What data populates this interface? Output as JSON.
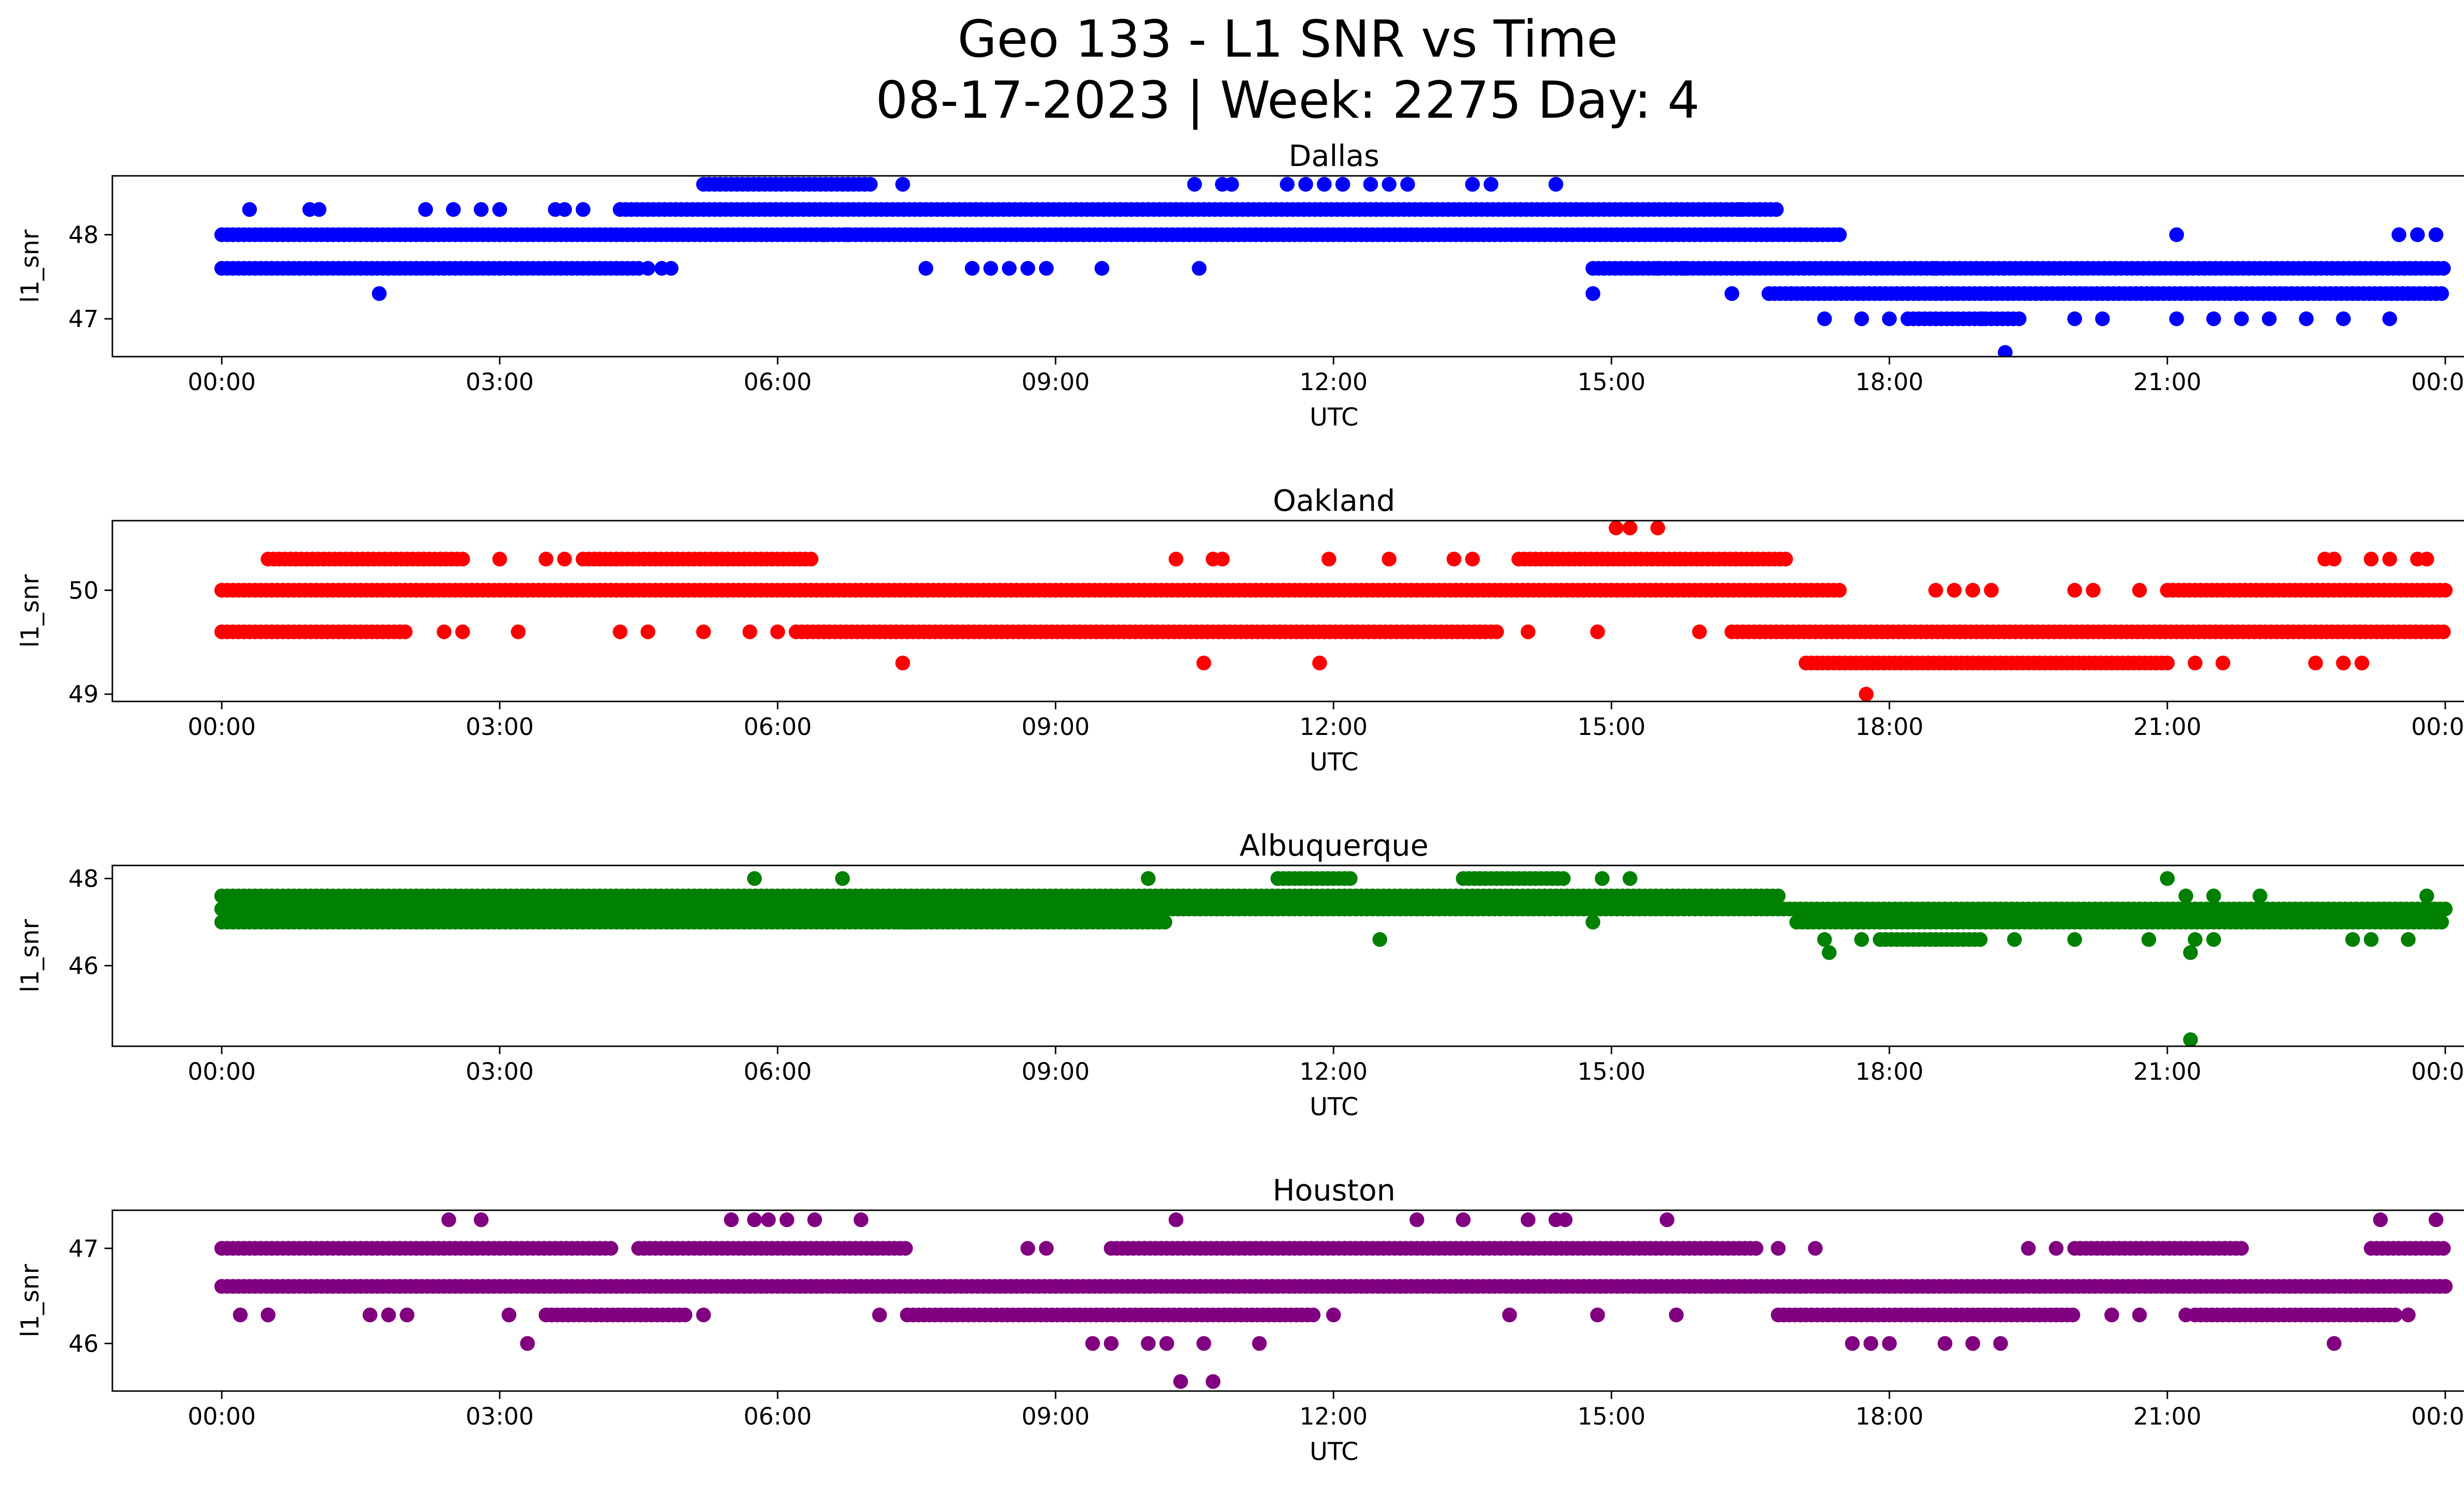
{
  "figure": {
    "title_line1": "Geo 133 - L1 SNR vs Time",
    "title_line2": "08-17-2023 | Week: 2275 Day: 4"
  },
  "chart_data": [
    {
      "type": "scatter",
      "title": "Dallas",
      "xlabel": "UTC",
      "ylabel": "l1_snr",
      "color": "#0000ff",
      "xlim": [
        0,
        24
      ],
      "ylim": [
        46.55,
        48.7
      ],
      "yticks": [
        47,
        48
      ],
      "xticks": [
        "00:00",
        "03:00",
        "06:00",
        "09:00",
        "12:00",
        "15:00",
        "18:00",
        "21:00",
        "00:00"
      ],
      "bands": [
        {
          "y": 48.0,
          "from": 0.0,
          "to": 17.5
        },
        {
          "y": 47.6,
          "from": 0.0,
          "to": 4.5
        },
        {
          "y": 48.3,
          "from": 4.3,
          "to": 16.8
        },
        {
          "y": 48.6,
          "from": 5.2,
          "to": 7.0
        },
        {
          "y": 47.6,
          "from": 14.8,
          "to": 24.0
        },
        {
          "y": 47.3,
          "from": 16.7,
          "to": 24.0
        },
        {
          "y": 47.0,
          "from": 18.2,
          "to": 19.4
        }
      ],
      "points": [
        [
          0.3,
          48.3
        ],
        [
          0.95,
          48.3
        ],
        [
          1.05,
          48.3
        ],
        [
          1.7,
          47.3
        ],
        [
          2.2,
          48.3
        ],
        [
          2.5,
          48.3
        ],
        [
          2.8,
          48.3
        ],
        [
          3.0,
          48.3
        ],
        [
          3.6,
          48.3
        ],
        [
          3.7,
          48.3
        ],
        [
          3.9,
          48.3
        ],
        [
          4.6,
          47.6
        ],
        [
          4.75,
          47.6
        ],
        [
          4.85,
          47.6
        ],
        [
          6.5,
          48.0
        ],
        [
          6.75,
          48.0
        ],
        [
          7.35,
          48.6
        ],
        [
          7.6,
          47.6
        ],
        [
          8.1,
          47.6
        ],
        [
          8.3,
          47.6
        ],
        [
          8.5,
          47.6
        ],
        [
          8.7,
          47.6
        ],
        [
          8.9,
          47.6
        ],
        [
          9.5,
          47.6
        ],
        [
          10.5,
          48.6
        ],
        [
          10.55,
          47.6
        ],
        [
          10.8,
          48.6
        ],
        [
          10.9,
          48.6
        ],
        [
          11.5,
          48.6
        ],
        [
          11.7,
          48.6
        ],
        [
          11.9,
          48.6
        ],
        [
          12.1,
          48.6
        ],
        [
          12.4,
          48.6
        ],
        [
          12.6,
          48.6
        ],
        [
          12.8,
          48.6
        ],
        [
          13.5,
          48.6
        ],
        [
          13.7,
          48.6
        ],
        [
          14.4,
          48.6
        ],
        [
          14.8,
          47.3
        ],
        [
          15.5,
          47.6
        ],
        [
          15.8,
          47.6
        ],
        [
          16.3,
          47.3
        ],
        [
          16.4,
          48.3
        ],
        [
          16.6,
          48.3
        ],
        [
          17.3,
          47.0
        ],
        [
          17.7,
          47.0
        ],
        [
          18.0,
          47.0
        ],
        [
          18.5,
          47.6
        ],
        [
          19.0,
          47.0
        ],
        [
          19.25,
          46.6
        ],
        [
          20.0,
          47.0
        ],
        [
          20.3,
          47.0
        ],
        [
          21.1,
          48.0
        ],
        [
          21.1,
          47.0
        ],
        [
          21.5,
          47.0
        ],
        [
          21.8,
          47.0
        ],
        [
          22.1,
          47.0
        ],
        [
          22.5,
          47.0
        ],
        [
          22.9,
          47.0
        ],
        [
          23.4,
          47.0
        ],
        [
          23.5,
          48.0
        ],
        [
          23.7,
          48.0
        ],
        [
          23.9,
          48.0
        ]
      ]
    },
    {
      "type": "scatter",
      "title": "Oakland",
      "xlabel": "UTC",
      "ylabel": "l1_snr",
      "color": "#ff0000",
      "xlim": [
        0,
        24
      ],
      "ylim": [
        48.93,
        50.67
      ],
      "yticks": [
        49,
        50
      ],
      "xticks": [
        "00:00",
        "03:00",
        "06:00",
        "09:00",
        "12:00",
        "15:00",
        "18:00",
        "21:00",
        "00:00"
      ],
      "bands": [
        {
          "y": 50.0,
          "from": 0.0,
          "to": 17.5
        },
        {
          "y": 49.6,
          "from": 0.0,
          "to": 2.0
        },
        {
          "y": 50.3,
          "from": 0.5,
          "to": 2.6
        },
        {
          "y": 50.3,
          "from": 3.9,
          "to": 6.4
        },
        {
          "y": 49.6,
          "from": 6.2,
          "to": 13.8
        },
        {
          "y": 50.3,
          "from": 14.0,
          "to": 16.9
        },
        {
          "y": 49.6,
          "from": 16.3,
          "to": 24.0
        },
        {
          "y": 49.3,
          "from": 17.1,
          "to": 21.0
        },
        {
          "y": 50.0,
          "from": 21.0,
          "to": 24.0
        }
      ],
      "points": [
        [
          2.4,
          49.6
        ],
        [
          2.6,
          49.6
        ],
        [
          3.0,
          50.3
        ],
        [
          3.2,
          49.6
        ],
        [
          3.5,
          50.3
        ],
        [
          3.7,
          50.3
        ],
        [
          4.3,
          49.6
        ],
        [
          4.6,
          49.6
        ],
        [
          5.2,
          49.6
        ],
        [
          5.7,
          49.6
        ],
        [
          6.0,
          49.6
        ],
        [
          7.35,
          49.3
        ],
        [
          10.3,
          50.3
        ],
        [
          10.6,
          49.3
        ],
        [
          10.7,
          50.3
        ],
        [
          10.8,
          50.3
        ],
        [
          11.85,
          49.3
        ],
        [
          11.95,
          50.3
        ],
        [
          12.6,
          50.3
        ],
        [
          13.3,
          50.3
        ],
        [
          13.5,
          50.3
        ],
        [
          14.1,
          49.6
        ],
        [
          14.85,
          49.6
        ],
        [
          15.05,
          50.6
        ],
        [
          15.2,
          50.6
        ],
        [
          15.5,
          50.6
        ],
        [
          15.95,
          49.6
        ],
        [
          17.75,
          49.0
        ],
        [
          18.5,
          50.0
        ],
        [
          18.7,
          50.0
        ],
        [
          18.9,
          50.0
        ],
        [
          19.1,
          50.0
        ],
        [
          20.0,
          50.0
        ],
        [
          20.2,
          50.0
        ],
        [
          20.7,
          50.0
        ],
        [
          21.3,
          49.3
        ],
        [
          21.6,
          49.3
        ],
        [
          22.7,
          50.3
        ],
        [
          22.8,
          50.3
        ],
        [
          22.6,
          49.3
        ],
        [
          22.9,
          49.3
        ],
        [
          23.1,
          49.3
        ],
        [
          23.2,
          50.3
        ],
        [
          23.4,
          50.3
        ],
        [
          23.7,
          50.3
        ],
        [
          23.8,
          50.3
        ]
      ]
    },
    {
      "type": "scatter",
      "title": "Albuquerque",
      "xlabel": "UTC",
      "ylabel": "l1_snr",
      "color": "#008000",
      "xlim": [
        0,
        24
      ],
      "ylim": [
        44.15,
        48.3
      ],
      "yticks": [
        46,
        48
      ],
      "xticks": [
        "00:00",
        "03:00",
        "06:00",
        "09:00",
        "12:00",
        "15:00",
        "18:00",
        "21:00",
        "00:00"
      ],
      "bands": [
        {
          "y": 47.0,
          "from": 0.0,
          "to": 7.5
        },
        {
          "y": 47.3,
          "from": 0.0,
          "to": 24.0
        },
        {
          "y": 47.6,
          "from": 0.0,
          "to": 16.8
        },
        {
          "y": 47.0,
          "from": 7.3,
          "to": 10.2
        },
        {
          "y": 47.0,
          "from": 17.0,
          "to": 24.0
        },
        {
          "y": 48.0,
          "from": 13.4,
          "to": 14.5
        },
        {
          "y": 48.0,
          "from": 11.4,
          "to": 12.2
        },
        {
          "y": 46.6,
          "from": 17.9,
          "to": 19.0
        }
      ],
      "points": [
        [
          5.75,
          48.0
        ],
        [
          6.7,
          48.0
        ],
        [
          10.0,
          48.0
        ],
        [
          11.4,
          48.0
        ],
        [
          12.5,
          46.6
        ],
        [
          14.9,
          48.0
        ],
        [
          14.8,
          47.0
        ],
        [
          15.2,
          48.0
        ],
        [
          17.3,
          46.6
        ],
        [
          17.35,
          46.3
        ],
        [
          17.7,
          46.6
        ],
        [
          19.35,
          46.6
        ],
        [
          20.0,
          46.6
        ],
        [
          20.8,
          46.6
        ],
        [
          21.0,
          48.0
        ],
        [
          21.2,
          47.6
        ],
        [
          21.3,
          46.6
        ],
        [
          21.25,
          46.3
        ],
        [
          21.25,
          44.3
        ],
        [
          21.5,
          46.6
        ],
        [
          21.5,
          47.6
        ],
        [
          22.0,
          47.6
        ],
        [
          23.0,
          46.6
        ],
        [
          23.2,
          46.6
        ],
        [
          23.6,
          46.6
        ],
        [
          23.8,
          47.6
        ]
      ]
    },
    {
      "type": "scatter",
      "title": "Houston",
      "xlabel": "UTC",
      "ylabel": "l1_snr",
      "color": "#800080",
      "xlim": [
        0,
        24
      ],
      "ylim": [
        45.5,
        47.4
      ],
      "yticks": [
        46,
        47
      ],
      "xticks": [
        "00:00",
        "03:00",
        "06:00",
        "09:00",
        "12:00",
        "15:00",
        "18:00",
        "21:00",
        "00:00"
      ],
      "bands": [
        {
          "y": 46.6,
          "from": 0.0,
          "to": 24.0
        },
        {
          "y": 47.0,
          "from": 0.0,
          "to": 4.2
        },
        {
          "y": 47.0,
          "from": 4.5,
          "to": 7.4
        },
        {
          "y": 47.0,
          "from": 9.6,
          "to": 16.6
        },
        {
          "y": 46.3,
          "from": 3.5,
          "to": 5.0
        },
        {
          "y": 46.3,
          "from": 7.4,
          "to": 11.8
        },
        {
          "y": 46.3,
          "from": 16.8,
          "to": 20.0
        },
        {
          "y": 47.0,
          "from": 20.0,
          "to": 21.8
        },
        {
          "y": 46.3,
          "from": 21.3,
          "to": 23.5
        },
        {
          "y": 47.0,
          "from": 23.2,
          "to": 24.0
        }
      ],
      "points": [
        [
          0.2,
          46.3
        ],
        [
          0.5,
          46.3
        ],
        [
          1.6,
          46.3
        ],
        [
          1.8,
          46.3
        ],
        [
          2.0,
          46.3
        ],
        [
          2.45,
          47.3
        ],
        [
          2.8,
          47.3
        ],
        [
          3.1,
          46.3
        ],
        [
          3.3,
          46.0
        ],
        [
          5.2,
          46.3
        ],
        [
          5.5,
          47.3
        ],
        [
          5.75,
          47.3
        ],
        [
          5.9,
          47.3
        ],
        [
          6.1,
          47.3
        ],
        [
          6.4,
          47.3
        ],
        [
          6.9,
          47.3
        ],
        [
          7.1,
          46.3
        ],
        [
          8.7,
          47.0
        ],
        [
          8.9,
          47.0
        ],
        [
          9.4,
          46.0
        ],
        [
          9.6,
          46.0
        ],
        [
          10.0,
          46.0
        ],
        [
          10.2,
          46.0
        ],
        [
          10.3,
          47.3
        ],
        [
          10.35,
          45.6
        ],
        [
          10.6,
          46.0
        ],
        [
          10.7,
          45.6
        ],
        [
          11.2,
          46.0
        ],
        [
          12.0,
          46.3
        ],
        [
          12.9,
          47.3
        ],
        [
          13.4,
          47.3
        ],
        [
          13.9,
          46.3
        ],
        [
          14.1,
          47.3
        ],
        [
          14.4,
          47.3
        ],
        [
          14.5,
          47.3
        ],
        [
          14.85,
          46.3
        ],
        [
          15.6,
          47.3
        ],
        [
          15.7,
          46.3
        ],
        [
          16.8,
          47.0
        ],
        [
          17.2,
          47.0
        ],
        [
          17.6,
          46.0
        ],
        [
          17.8,
          46.0
        ],
        [
          18.0,
          46.0
        ],
        [
          18.6,
          46.0
        ],
        [
          18.9,
          46.0
        ],
        [
          19.2,
          46.0
        ],
        [
          19.5,
          47.0
        ],
        [
          19.8,
          47.0
        ],
        [
          20.4,
          46.3
        ],
        [
          20.7,
          46.3
        ],
        [
          21.2,
          46.3
        ],
        [
          22.8,
          46.0
        ],
        [
          23.3,
          47.3
        ],
        [
          23.6,
          46.3
        ],
        [
          23.9,
          47.3
        ]
      ]
    }
  ]
}
